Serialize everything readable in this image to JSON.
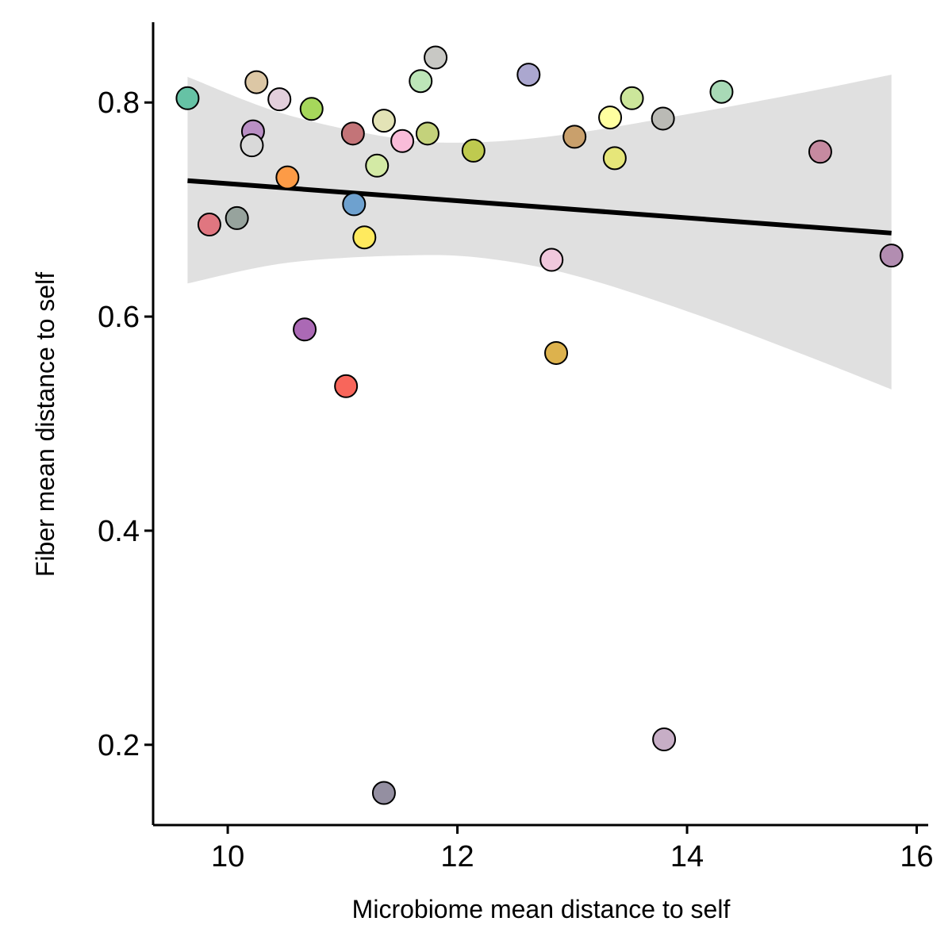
{
  "chart_data": {
    "type": "scatter",
    "title": "",
    "xlabel": "Microbiome mean distance to self",
    "ylabel": "Fiber mean distance to self",
    "xlim": [
      9.35,
      16.1
    ],
    "ylim": [
      0.125,
      0.875
    ],
    "xticks": [
      10,
      12,
      14,
      16
    ],
    "xtick_labels": [
      "10",
      "12",
      "14",
      "16"
    ],
    "yticks": [
      0.2,
      0.4,
      0.6,
      0.8
    ],
    "ytick_labels": [
      "0.2",
      "0.4",
      "0.6",
      "0.8"
    ],
    "grid": false,
    "legend": "none",
    "points": [
      {
        "x": 9.65,
        "y": 0.804,
        "color": "#66c2a5"
      },
      {
        "x": 9.84,
        "y": 0.686,
        "color": "#e07680"
      },
      {
        "x": 10.08,
        "y": 0.692,
        "color": "#97a39d"
      },
      {
        "x": 10.22,
        "y": 0.773,
        "color": "#b98fc4"
      },
      {
        "x": 10.21,
        "y": 0.76,
        "color": "#d9d9d9"
      },
      {
        "x": 10.25,
        "y": 0.819,
        "color": "#dcc7a5"
      },
      {
        "x": 10.45,
        "y": 0.803,
        "color": "#e3cfdc"
      },
      {
        "x": 10.52,
        "y": 0.73,
        "color": "#fd9b46"
      },
      {
        "x": 10.67,
        "y": 0.588,
        "color": "#ab69b5"
      },
      {
        "x": 10.73,
        "y": 0.794,
        "color": "#a6d75b"
      },
      {
        "x": 11.03,
        "y": 0.535,
        "color": "#f8665b"
      },
      {
        "x": 11.09,
        "y": 0.771,
        "color": "#c37478"
      },
      {
        "x": 11.1,
        "y": 0.705,
        "color": "#6ea1cf"
      },
      {
        "x": 11.19,
        "y": 0.674,
        "color": "#ffea5e"
      },
      {
        "x": 11.3,
        "y": 0.741,
        "color": "#d3eaa5"
      },
      {
        "x": 11.36,
        "y": 0.783,
        "color": "#e3e3b6"
      },
      {
        "x": 11.36,
        "y": 0.155,
        "color": "#948fa1"
      },
      {
        "x": 11.52,
        "y": 0.764,
        "color": "#f9bcd9"
      },
      {
        "x": 11.68,
        "y": 0.82,
        "color": "#bde6b8"
      },
      {
        "x": 11.74,
        "y": 0.771,
        "color": "#c4d27b"
      },
      {
        "x": 11.81,
        "y": 0.842,
        "color": "#c8c8c4"
      },
      {
        "x": 12.14,
        "y": 0.755,
        "color": "#bfca4f"
      },
      {
        "x": 12.62,
        "y": 0.826,
        "color": "#aba7cf"
      },
      {
        "x": 12.82,
        "y": 0.653,
        "color": "#f0c8dc"
      },
      {
        "x": 12.86,
        "y": 0.566,
        "color": "#ddb24d"
      },
      {
        "x": 13.02,
        "y": 0.768,
        "color": "#c9a06c"
      },
      {
        "x": 13.33,
        "y": 0.786,
        "color": "#ffffa0"
      },
      {
        "x": 13.37,
        "y": 0.748,
        "color": "#e6e679"
      },
      {
        "x": 13.52,
        "y": 0.804,
        "color": "#cce69b"
      },
      {
        "x": 13.79,
        "y": 0.785,
        "color": "#babab5"
      },
      {
        "x": 13.8,
        "y": 0.205,
        "color": "#c7aec6"
      },
      {
        "x": 14.3,
        "y": 0.81,
        "color": "#a8d9b6"
      },
      {
        "x": 15.16,
        "y": 0.754,
        "color": "#c68aa0"
      },
      {
        "x": 15.78,
        "y": 0.657,
        "color": "#b28db1"
      }
    ],
    "regression": {
      "x": [
        9.65,
        15.78
      ],
      "y": [
        0.727,
        0.678
      ],
      "color": "#000000"
    },
    "confidence_band": {
      "color": "#e0e0e0",
      "x": [
        9.65,
        10.5,
        11.5,
        12.2,
        13.0,
        14.0,
        15.0,
        15.78
      ],
      "upper": [
        0.824,
        0.789,
        0.766,
        0.763,
        0.771,
        0.789,
        0.809,
        0.826
      ],
      "lower": [
        0.631,
        0.65,
        0.657,
        0.655,
        0.639,
        0.605,
        0.565,
        0.532
      ]
    }
  }
}
